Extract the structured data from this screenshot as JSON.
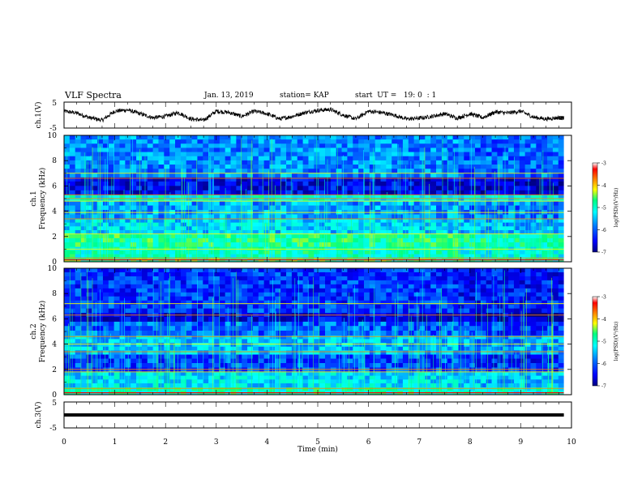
{
  "header": {
    "title": "VLF Spectra",
    "date": "Jan. 13, 2019",
    "station": "station= KAP",
    "start": "start  UT =   19: 0  : 1"
  },
  "chart_data": [
    {
      "type": "line",
      "panel": "ch1-waveform",
      "ylabel": "ch.1(V)",
      "ylim": [
        -5,
        5
      ],
      "yticks": [
        "5",
        "-5"
      ],
      "xlim": [
        0,
        10
      ],
      "x": [
        0,
        0.25,
        0.5,
        0.75,
        1,
        1.25,
        1.5,
        1.75,
        2,
        2.25,
        2.5,
        2.75,
        3,
        3.25,
        3.5,
        3.75,
        4,
        4.25,
        4.5,
        4.75,
        5,
        5.25,
        5.5,
        5.75,
        6,
        6.25,
        6.5,
        6.75,
        7,
        7.25,
        7.5,
        7.75,
        8,
        8.25,
        8.5,
        8.75,
        9,
        9.25,
        9.5,
        9.75,
        9.85
      ],
      "y": [
        1.5,
        0.8,
        -1.0,
        -2.0,
        1.5,
        2.0,
        0.5,
        -1.0,
        -0.5,
        1.0,
        -1.5,
        -2.0,
        1.5,
        1.0,
        -0.5,
        1.5,
        0.5,
        -1.5,
        -0.5,
        1.0,
        1.8,
        2.2,
        0.0,
        -1.5,
        1.5,
        1.0,
        0.0,
        -1.5,
        -1.2,
        -0.5,
        0.5,
        -1.2,
        0.5,
        -1.0,
        1.2,
        0.8,
        1.5,
        -0.8,
        -1.5,
        -1.0,
        -1.2
      ]
    },
    {
      "type": "heatmap",
      "panel": "ch1-spectrogram",
      "ylabel": "ch.1\nFrequency (kHz)",
      "ylabel_line1": "ch.1",
      "ylabel_line2": "Frequency (kHz)",
      "ylim": [
        0,
        10
      ],
      "yticks": [
        "0",
        "2",
        "4",
        "6",
        "8",
        "10"
      ],
      "xlim": [
        0,
        10
      ],
      "data_extent_min": 9.85,
      "colorbar": {
        "label": "log(PSD)(V²/Hz)",
        "range": [
          -7,
          -3
        ],
        "ticks": [
          "-3",
          "-4",
          "-5",
          "-6",
          "-7"
        ]
      },
      "bands": [
        {
          "from": 0,
          "to": 0.3,
          "level": 0.55
        },
        {
          "from": 0.3,
          "to": 1.2,
          "level": 0.5
        },
        {
          "from": 1.2,
          "to": 2.2,
          "level": 0.55
        },
        {
          "from": 2.2,
          "to": 3.4,
          "level": 0.38
        },
        {
          "from": 3.4,
          "to": 4.8,
          "level": 0.32
        },
        {
          "from": 4.8,
          "to": 5.3,
          "level": 0.45
        },
        {
          "from": 5.3,
          "to": 6.7,
          "level": 0.12
        },
        {
          "from": 6.7,
          "to": 10,
          "level": 0.3
        }
      ],
      "lines": [
        0.3,
        1.0,
        2.2,
        3.4,
        3.9,
        4.8,
        5.0,
        5.3,
        6.6,
        7.0
      ]
    },
    {
      "type": "heatmap",
      "panel": "ch2-spectrogram",
      "ylabel": "ch.2\nFrequency (kHz)",
      "ylabel_line1": "ch.2",
      "ylabel_line2": "Frequency (kHz)",
      "ylim": [
        0,
        10
      ],
      "yticks": [
        "0",
        "2",
        "4",
        "6",
        "8",
        "10"
      ],
      "xlim": [
        0,
        10
      ],
      "data_extent_min": 9.85,
      "colorbar": {
        "label": "log(PSD)(V²/Hz)",
        "range": [
          -7,
          -3
        ],
        "ticks": [
          "-3",
          "-4",
          "-5",
          "-6",
          "-7"
        ]
      },
      "bands": [
        {
          "from": 0,
          "to": 0.6,
          "level": 0.5
        },
        {
          "from": 0.6,
          "to": 1.8,
          "level": 0.4
        },
        {
          "from": 1.8,
          "to": 3.2,
          "level": 0.22
        },
        {
          "from": 3.2,
          "to": 4.7,
          "level": 0.36
        },
        {
          "from": 4.7,
          "to": 5.8,
          "level": 0.25
        },
        {
          "from": 5.8,
          "to": 6.5,
          "level": 0.12
        },
        {
          "from": 6.5,
          "to": 10,
          "level": 0.2
        }
      ],
      "lines": [
        0.5,
        1.8,
        2.0,
        3.4,
        4.0,
        4.6,
        6.3,
        7.2
      ]
    },
    {
      "type": "line",
      "panel": "ch3-waveform",
      "ylabel": "ch.3(V)",
      "ylim": [
        -5,
        5
      ],
      "yticks": [
        "5",
        "-5"
      ],
      "xlim": [
        0,
        10
      ],
      "x": [
        0,
        9.85
      ],
      "y": [
        0,
        0
      ]
    }
  ],
  "x_axis": {
    "xlabel": "Time (min)",
    "ticks": [
      "0",
      "1",
      "2",
      "3",
      "4",
      "5",
      "6",
      "7",
      "8",
      "9",
      "10"
    ]
  },
  "colors": {
    "colormap": [
      "#000080",
      "#0000ff",
      "#0080ff",
      "#00ffff",
      "#00ff80",
      "#ffff00",
      "#ff8000",
      "#ff0000",
      "#ffffff"
    ]
  }
}
